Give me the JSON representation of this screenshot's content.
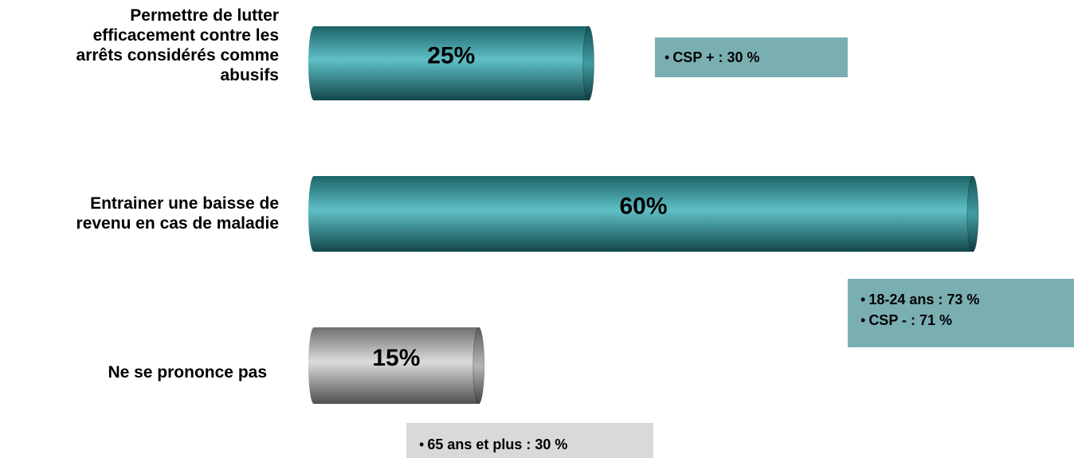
{
  "chart_data": {
    "type": "bar",
    "orientation": "horizontal",
    "categories": [
      "Permettre de lutter efficacement contre les arrêts considérés comme abusifs",
      "Entrainer une baisse de revenu en cas de maladie",
      "Ne se prononce pas"
    ],
    "values": [
      25,
      60,
      15
    ],
    "value_labels": [
      "25%",
      "60%",
      "15%"
    ],
    "bar_colors": [
      "#2f8f95",
      "#2f8f95",
      "#8f8f8f"
    ],
    "xlim": [
      0,
      60
    ],
    "grid": false,
    "legend": "none"
  },
  "labels": [
    [
      "Permettre de lutter",
      "efficacement contre les",
      "arrêts considérés comme",
      "abusifs"
    ],
    [
      "Entrainer une baisse de",
      "revenu en cas de maladie"
    ],
    [
      "Ne se prononce pas"
    ]
  ],
  "notes": [
    {
      "bullet": "•",
      "lines": [
        "CSP + : 30 %"
      ],
      "color": "#7aafb2"
    },
    {
      "bullet": "•",
      "lines": [
        "18-24 ans : 73 %",
        "CSP - : 71 %"
      ],
      "color": "#7aafb2"
    },
    {
      "bullet": "•",
      "lines": [
        "65 ans et plus : 30 %"
      ],
      "color": "#d9d9d9"
    }
  ]
}
